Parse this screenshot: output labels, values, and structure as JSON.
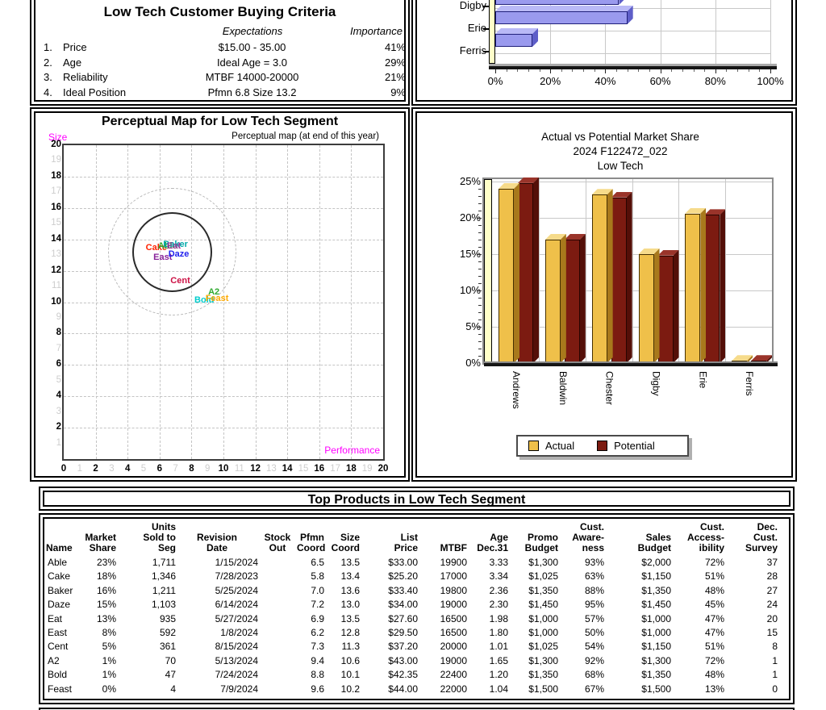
{
  "criteria_panel": {
    "title": "Low Tech Customer Buying Criteria",
    "col_expectations": "Expectations",
    "col_importance": "Importance",
    "rows": [
      {
        "num": "1.",
        "name": "Price",
        "expectation": "$15.00 - 35.00",
        "importance": "41%"
      },
      {
        "num": "2.",
        "name": "Age",
        "expectation": "Ideal Age = 3.0",
        "importance": "29%"
      },
      {
        "num": "3.",
        "name": "Reliability",
        "expectation": "MTBF 14000-20000",
        "importance": "21%"
      },
      {
        "num": "4.",
        "name": "Ideal Position",
        "expectation": "Pfmn 6.8 Size 13.2",
        "importance": "9%"
      }
    ]
  },
  "chart_data": [
    {
      "id": "team-horizontal-bar",
      "type": "bar",
      "orientation": "horizontal",
      "note": "top of chart cut off at screenshot edge",
      "categories": [
        "Digby",
        "Erie",
        "Ferris"
      ],
      "values": [
        45,
        48,
        13.5
      ],
      "xlim": [
        0,
        100
      ],
      "xticks": [
        "0%",
        "20%",
        "40%",
        "60%",
        "80%",
        "100%"
      ],
      "bar_color": "#9a9aee",
      "wall_color": "#ffffc8"
    },
    {
      "id": "perceptual-map",
      "type": "scatter",
      "title": "Perceptual Map for Low Tech Segment",
      "subtitle": "Perceptual map (at end of this year)",
      "xlabel": "Performance",
      "ylabel": "Size",
      "axis_label_color": "#ff00ff",
      "xlim": [
        0,
        20
      ],
      "ylim": [
        0,
        20
      ],
      "grid": "dashed",
      "segment_center": {
        "x": 6.8,
        "y": 13.2
      },
      "inner_circle_radius": 2.5,
      "outer_circle_radius": 4.0,
      "points": [
        {
          "label": "Cake",
          "x": 5.8,
          "y": 13.4,
          "color": "#ff2200"
        },
        {
          "label": "Able",
          "x": 6.5,
          "y": 13.5,
          "color": "#2faa2f"
        },
        {
          "label": "Baker",
          "x": 7.0,
          "y": 13.6,
          "color": "#00aaaa"
        },
        {
          "label": "Eat",
          "x": 6.9,
          "y": 13.5,
          "color": "#993399"
        },
        {
          "label": "East",
          "x": 6.2,
          "y": 12.8,
          "color": "#882299"
        },
        {
          "label": "Daze",
          "x": 7.2,
          "y": 13.0,
          "color": "#2222ee"
        },
        {
          "label": "Cent",
          "x": 7.3,
          "y": 11.3,
          "color": "#cc1144"
        },
        {
          "label": "A2",
          "x": 9.4,
          "y": 10.6,
          "color": "#2faa2f"
        },
        {
          "label": "Bold",
          "x": 8.8,
          "y": 10.1,
          "color": "#00cccc"
        },
        {
          "label": "Feast",
          "x": 9.6,
          "y": 10.2,
          "color": "#ffaa00"
        }
      ]
    },
    {
      "id": "actual-vs-potential",
      "type": "bar",
      "title_lines": [
        "Actual vs Potential Market Share",
        "2024 F122472_022",
        "Low Tech"
      ],
      "title_color": "#3a3ad0",
      "categories": [
        "Andrews",
        "Baldwin",
        "Chester",
        "Digby",
        "Erie",
        "Ferris"
      ],
      "series": [
        {
          "name": "Actual",
          "color": "#efc04a",
          "values": [
            24.0,
            17.0,
            23.2,
            15.0,
            20.6,
            0.3
          ]
        },
        {
          "name": "Potential",
          "color": "#7c1b11",
          "values": [
            24.8,
            17.0,
            22.8,
            14.8,
            20.4,
            0.3
          ]
        }
      ],
      "ylim": [
        0,
        25
      ],
      "yticks": [
        "0%",
        "5%",
        "10%",
        "15%",
        "20%",
        "25%"
      ],
      "legend_position": "bottom"
    }
  ],
  "products_panel": {
    "title": "Top Products in Low Tech Segment",
    "columns": [
      "Name",
      "Market\nShare",
      "Units\nSold to\nSeg",
      "Revision\nDate",
      "Stock\nOut",
      "Pfmn\nCoord",
      "Size\nCoord",
      "List\nPrice",
      "MTBF",
      "Age\nDec.31",
      "Promo\nBudget",
      "Cust.\nAware-\nness",
      "Sales\nBudget",
      "Cust.\nAccess-\nibility",
      "Dec.\nCust.\nSurvey"
    ],
    "rows": [
      [
        "Able",
        "23%",
        "1,711",
        "1/15/2024",
        "",
        "6.5",
        "13.5",
        "$33.00",
        "19900",
        "3.33",
        "$1,300",
        "93%",
        "$2,000",
        "72%",
        "37"
      ],
      [
        "Cake",
        "18%",
        "1,346",
        "7/28/2023",
        "",
        "5.8",
        "13.4",
        "$25.20",
        "17000",
        "3.34",
        "$1,025",
        "63%",
        "$1,150",
        "51%",
        "28"
      ],
      [
        "Baker",
        "16%",
        "1,211",
        "5/25/2024",
        "",
        "7.0",
        "13.6",
        "$33.40",
        "19800",
        "2.36",
        "$1,350",
        "88%",
        "$1,350",
        "48%",
        "27"
      ],
      [
        "Daze",
        "15%",
        "1,103",
        "6/14/2024",
        "",
        "7.2",
        "13.0",
        "$34.00",
        "19000",
        "2.30",
        "$1,450",
        "95%",
        "$1,450",
        "45%",
        "24"
      ],
      [
        "Eat",
        "13%",
        "935",
        "5/27/2024",
        "",
        "6.9",
        "13.5",
        "$27.60",
        "16500",
        "1.98",
        "$1,000",
        "57%",
        "$1,000",
        "47%",
        "20"
      ],
      [
        "East",
        "8%",
        "592",
        "1/8/2024",
        "",
        "6.2",
        "12.8",
        "$29.50",
        "16500",
        "1.80",
        "$1,000",
        "50%",
        "$1,000",
        "47%",
        "15"
      ],
      [
        "Cent",
        "5%",
        "361",
        "8/15/2024",
        "",
        "7.3",
        "11.3",
        "$37.20",
        "20000",
        "1.01",
        "$1,025",
        "54%",
        "$1,150",
        "51%",
        "8"
      ],
      [
        "A2",
        "1%",
        "70",
        "5/13/2024",
        "",
        "9.4",
        "10.6",
        "$43.00",
        "19000",
        "1.65",
        "$1,300",
        "92%",
        "$1,300",
        "72%",
        "1"
      ],
      [
        "Bold",
        "1%",
        "47",
        "7/24/2024",
        "",
        "8.8",
        "10.1",
        "$42.35",
        "22400",
        "1.20",
        "$1,350",
        "68%",
        "$1,350",
        "48%",
        "1"
      ],
      [
        "Feast",
        "0%",
        "4",
        "7/9/2024",
        "",
        "9.6",
        "10.2",
        "$44.00",
        "22000",
        "1.04",
        "$1,500",
        "67%",
        "$1,500",
        "13%",
        "0"
      ]
    ]
  }
}
